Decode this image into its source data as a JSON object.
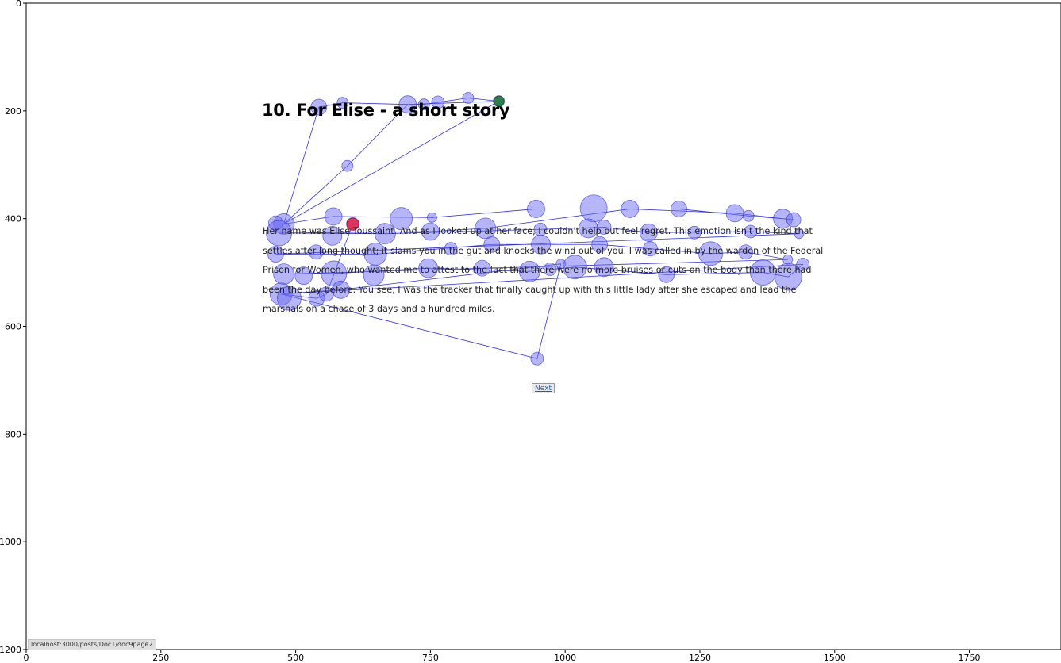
{
  "stimulus": {
    "title": "10. For Elise - a short story",
    "body": "Her name was Elise Toussaint. And as I looked up at her face, I couldn't help but feel regret. This emotion isn't the kind that settles after long thought; it slams you in the gut and knocks the wind out of you. I was called in by the warden of the Federal Prison for Women, who wanted me to attest to the fact that there were no more bruises or cuts on the body than there had been the day before. You see, I was the tracker that finally caught up with this little lady after she escaped and lead the marshals on a chase of 3 days and a hundred miles.",
    "next_label": "Next",
    "status_url": "localhost:3000/posts/Doc1/doc9page2"
  },
  "chart_data": {
    "type": "scatter",
    "title": "",
    "xlabel": "",
    "ylabel": "",
    "xlim": [
      0,
      1920
    ],
    "ylim": [
      1200,
      0
    ],
    "y_inverted": true,
    "x_ticks": [
      0,
      250,
      500,
      750,
      1000,
      1250,
      1500,
      1750
    ],
    "y_ticks": [
      0,
      200,
      400,
      600,
      800,
      1000,
      1200
    ],
    "grid": false,
    "colors": {
      "fixation_fill": "#6b6bf0",
      "fixation_stroke": "#3434d6",
      "saccade_line": "#1c1ce0",
      "start_marker": "#2e7d4f",
      "end_marker": "#e0284a"
    },
    "start_point": {
      "x": 877,
      "y": 182
    },
    "end_point": {
      "x": 606,
      "y": 410
    },
    "fixations": [
      {
        "x": 877,
        "y": 182,
        "r": 7
      },
      {
        "x": 820,
        "y": 176,
        "r": 7
      },
      {
        "x": 764,
        "y": 184,
        "r": 8
      },
      {
        "x": 738,
        "y": 188,
        "r": 7
      },
      {
        "x": 708,
        "y": 188,
        "r": 11
      },
      {
        "x": 587,
        "y": 185,
        "r": 7
      },
      {
        "x": 543,
        "y": 193,
        "r": 10
      },
      {
        "x": 596,
        "y": 302,
        "r": 7
      },
      {
        "x": 478,
        "y": 410,
        "r": 13
      },
      {
        "x": 463,
        "y": 408,
        "r": 9
      },
      {
        "x": 570,
        "y": 396,
        "r": 11
      },
      {
        "x": 696,
        "y": 400,
        "r": 14
      },
      {
        "x": 753,
        "y": 398,
        "r": 6
      },
      {
        "x": 946,
        "y": 382,
        "r": 11
      },
      {
        "x": 1053,
        "y": 381,
        "r": 17
      },
      {
        "x": 1120,
        "y": 382,
        "r": 11
      },
      {
        "x": 1211,
        "y": 382,
        "r": 10
      },
      {
        "x": 1315,
        "y": 390,
        "r": 11
      },
      {
        "x": 1340,
        "y": 395,
        "r": 7
      },
      {
        "x": 1404,
        "y": 400,
        "r": 12
      },
      {
        "x": 1424,
        "y": 402,
        "r": 9
      },
      {
        "x": 469,
        "y": 427,
        "r": 16
      },
      {
        "x": 568,
        "y": 432,
        "r": 12
      },
      {
        "x": 666,
        "y": 428,
        "r": 13
      },
      {
        "x": 750,
        "y": 424,
        "r": 11
      },
      {
        "x": 852,
        "y": 418,
        "r": 13
      },
      {
        "x": 954,
        "y": 420,
        "r": 8
      },
      {
        "x": 1043,
        "y": 418,
        "r": 12
      },
      {
        "x": 1072,
        "y": 416,
        "r": 9
      },
      {
        "x": 1155,
        "y": 426,
        "r": 11
      },
      {
        "x": 1240,
        "y": 426,
        "r": 8
      },
      {
        "x": 1344,
        "y": 424,
        "r": 8
      },
      {
        "x": 1434,
        "y": 428,
        "r": 6
      },
      {
        "x": 463,
        "y": 466,
        "r": 10
      },
      {
        "x": 538,
        "y": 462,
        "r": 9
      },
      {
        "x": 648,
        "y": 466,
        "r": 14
      },
      {
        "x": 788,
        "y": 456,
        "r": 8
      },
      {
        "x": 864,
        "y": 448,
        "r": 10
      },
      {
        "x": 955,
        "y": 448,
        "r": 12
      },
      {
        "x": 1064,
        "y": 448,
        "r": 10
      },
      {
        "x": 1158,
        "y": 456,
        "r": 9
      },
      {
        "x": 1270,
        "y": 465,
        "r": 15
      },
      {
        "x": 1335,
        "y": 462,
        "r": 9
      },
      {
        "x": 1413,
        "y": 476,
        "r": 6
      },
      {
        "x": 478,
        "y": 503,
        "r": 13
      },
      {
        "x": 515,
        "y": 506,
        "r": 11
      },
      {
        "x": 571,
        "y": 502,
        "r": 16
      },
      {
        "x": 645,
        "y": 505,
        "r": 13
      },
      {
        "x": 746,
        "y": 492,
        "r": 12
      },
      {
        "x": 846,
        "y": 492,
        "r": 10
      },
      {
        "x": 934,
        "y": 498,
        "r": 13
      },
      {
        "x": 972,
        "y": 494,
        "r": 8
      },
      {
        "x": 992,
        "y": 484,
        "r": 6
      },
      {
        "x": 1018,
        "y": 490,
        "r": 15
      },
      {
        "x": 1072,
        "y": 490,
        "r": 12
      },
      {
        "x": 1188,
        "y": 504,
        "r": 10
      },
      {
        "x": 1367,
        "y": 500,
        "r": 16
      },
      {
        "x": 1414,
        "y": 508,
        "r": 17
      },
      {
        "x": 1441,
        "y": 485,
        "r": 8
      },
      {
        "x": 473,
        "y": 540,
        "r": 14
      },
      {
        "x": 488,
        "y": 548,
        "r": 15
      },
      {
        "x": 539,
        "y": 548,
        "r": 10
      },
      {
        "x": 557,
        "y": 540,
        "r": 9
      },
      {
        "x": 584,
        "y": 532,
        "r": 11
      },
      {
        "x": 948,
        "y": 660,
        "r": 8
      },
      {
        "x": 606,
        "y": 410,
        "r": 8
      }
    ],
    "saccade_path": [
      [
        877,
        182
      ],
      [
        820,
        176
      ],
      [
        764,
        184
      ],
      [
        738,
        188
      ],
      [
        708,
        188
      ],
      [
        587,
        185
      ],
      [
        543,
        193
      ],
      [
        478,
        410
      ],
      [
        596,
        302
      ],
      [
        708,
        188
      ],
      [
        877,
        182
      ],
      [
        478,
        410
      ],
      [
        570,
        396
      ],
      [
        753,
        398
      ],
      [
        946,
        382
      ],
      [
        1211,
        382
      ],
      [
        1340,
        395
      ],
      [
        1424,
        402
      ],
      [
        1404,
        400
      ],
      [
        1315,
        390
      ],
      [
        1120,
        382
      ],
      [
        852,
        418
      ],
      [
        750,
        424
      ],
      [
        469,
        427
      ],
      [
        666,
        428
      ],
      [
        954,
        420
      ],
      [
        1072,
        416
      ],
      [
        1155,
        426
      ],
      [
        1344,
        424
      ],
      [
        1434,
        428
      ],
      [
        463,
        466
      ],
      [
        648,
        466
      ],
      [
        864,
        448
      ],
      [
        1064,
        448
      ],
      [
        1158,
        456
      ],
      [
        1270,
        465
      ],
      [
        1335,
        462
      ],
      [
        1413,
        476
      ],
      [
        478,
        503
      ],
      [
        571,
        502
      ],
      [
        746,
        492
      ],
      [
        934,
        498
      ],
      [
        1018,
        490
      ],
      [
        1188,
        504
      ],
      [
        1367,
        500
      ],
      [
        1414,
        508
      ],
      [
        1441,
        485
      ],
      [
        473,
        540
      ],
      [
        584,
        532
      ],
      [
        992,
        484
      ],
      [
        948,
        660
      ],
      [
        473,
        540
      ],
      [
        539,
        548
      ],
      [
        557,
        540
      ],
      [
        606,
        410
      ]
    ]
  }
}
